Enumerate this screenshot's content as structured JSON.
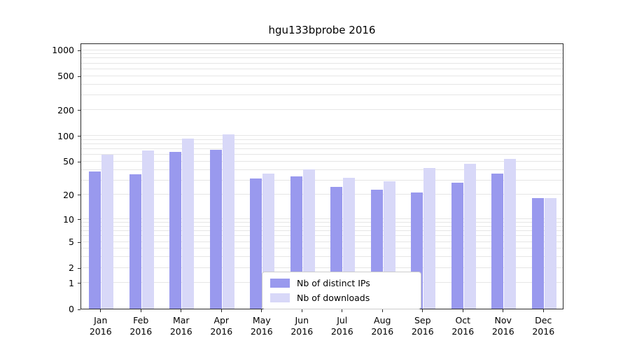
{
  "title": "hgu133bprobe 2016",
  "chart_data": {
    "type": "bar",
    "title": "hgu133bprobe 2016",
    "scale": "log10(1+x)",
    "grid": true,
    "legend_position": "bottom-center",
    "categories": [
      "Jan 2016",
      "Feb 2016",
      "Mar 2016",
      "Apr 2016",
      "May 2016",
      "Jun 2016",
      "Jul 2016",
      "Aug 2016",
      "Sep 2016",
      "Oct 2016",
      "Nov 2016",
      "Dec 2016"
    ],
    "series": [
      {
        "name": "Nb of distinct IPs",
        "color": "#9999ee",
        "values": [
          38,
          35,
          65,
          68,
          31,
          33,
          25,
          23,
          21,
          28,
          36,
          18
        ]
      },
      {
        "name": "Nb of downloads",
        "color": "#d8d8f8",
        "values": [
          60,
          67,
          92,
          104,
          36,
          40,
          32,
          29,
          42,
          47,
          53,
          18
        ]
      }
    ],
    "yticks": [
      0,
      1,
      2,
      5,
      10,
      20,
      50,
      100,
      200,
      500,
      1000
    ],
    "ytick_labels": [
      "0",
      "1",
      "2",
      "5",
      "10",
      "20",
      "50",
      "100",
      "200",
      "500",
      "1000"
    ],
    "ylim": [
      0,
      1200
    ]
  }
}
